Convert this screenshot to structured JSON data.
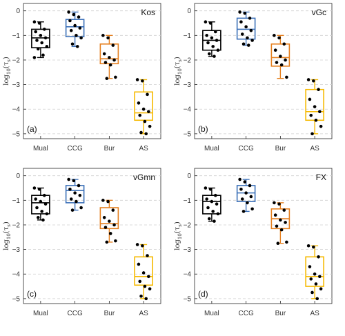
{
  "figure": {
    "y_axis_label_base": "log",
    "y_axis_label_sub": "10",
    "y_axis_label_arg": "(τ",
    "y_axis_label_argsub": "s",
    "y_axis_label_close": ")"
  },
  "chart_data": [
    {
      "type": "box",
      "title": "Kos",
      "panel_label": "(a)",
      "categories": [
        "Mual",
        "CCG",
        "Bur",
        "AS"
      ],
      "ylim": [
        -5.2,
        0.3
      ],
      "yticks": [
        0,
        -1,
        -2,
        -3,
        -4,
        -5
      ],
      "grid": "horizontal-dashed",
      "series": [
        {
          "category": "Mual",
          "color": "#000000",
          "min": -1.9,
          "q1": -1.5,
          "median": -1.1,
          "q3": -0.75,
          "max": -0.45,
          "points": [
            -0.45,
            -0.5,
            -0.75,
            -0.85,
            -1.0,
            -1.1,
            -1.2,
            -1.3,
            -1.45,
            -1.55,
            -1.8,
            -1.9
          ]
        },
        {
          "category": "CCG",
          "color": "#3a6fb8",
          "min": -1.45,
          "q1": -1.05,
          "median": -0.65,
          "q3": -0.35,
          "max": -0.05,
          "points": [
            -0.05,
            -0.15,
            -0.25,
            -0.4,
            -0.6,
            -0.7,
            -0.8,
            -1.0,
            -1.1,
            -1.35,
            -1.45
          ]
        },
        {
          "category": "Bur",
          "color": "#e57f1e",
          "min": -2.75,
          "q1": -2.15,
          "median": -1.95,
          "q3": -1.35,
          "max": -1.0,
          "points": [
            -1.0,
            -1.1,
            -1.4,
            -1.75,
            -1.9,
            -2.0,
            -2.1,
            -2.2,
            -2.7,
            -2.75
          ]
        },
        {
          "category": "AS",
          "color": "#f6b900",
          "min": -5.0,
          "q1": -4.45,
          "median": -4.15,
          "q3": -3.3,
          "max": -2.8,
          "points": [
            -2.8,
            -2.85,
            -3.4,
            -3.75,
            -4.0,
            -4.1,
            -4.25,
            -4.5,
            -4.7,
            -4.95,
            -5.0
          ]
        }
      ]
    },
    {
      "type": "box",
      "title": "vGc",
      "panel_label": "(b)",
      "categories": [
        "Mual",
        "CCG",
        "Bur",
        "AS"
      ],
      "ylim": [
        -5.2,
        0.3
      ],
      "yticks": [
        0,
        -1,
        -2,
        -3,
        -4,
        -5
      ],
      "grid": "horizontal-dashed",
      "series": [
        {
          "category": "Mual",
          "color": "#000000",
          "min": -1.85,
          "q1": -1.6,
          "median": -1.2,
          "q3": -0.8,
          "max": -0.45,
          "points": [
            -0.45,
            -0.5,
            -0.85,
            -1.0,
            -1.1,
            -1.2,
            -1.3,
            -1.45,
            -1.6,
            -1.75,
            -1.85
          ]
        },
        {
          "category": "CCG",
          "color": "#3a6fb8",
          "min": -1.4,
          "q1": -1.15,
          "median": -0.75,
          "q3": -0.3,
          "max": -0.05,
          "points": [
            -0.05,
            -0.1,
            -0.3,
            -0.45,
            -0.65,
            -0.8,
            -0.95,
            -1.1,
            -1.2,
            -1.35,
            -1.4
          ]
        },
        {
          "category": "Bur",
          "color": "#e57f1e",
          "min": -2.75,
          "q1": -2.25,
          "median": -1.9,
          "q3": -1.35,
          "max": -1.0,
          "points": [
            -1.0,
            -1.1,
            -1.35,
            -1.6,
            -1.85,
            -2.0,
            -2.1,
            -2.2,
            -2.7
          ]
        },
        {
          "category": "AS",
          "color": "#f6b900",
          "min": -5.0,
          "q1": -4.45,
          "median": -4.1,
          "q3": -3.2,
          "max": -2.8,
          "points": [
            -2.8,
            -2.85,
            -3.2,
            -3.6,
            -3.9,
            -4.1,
            -4.25,
            -4.45,
            -4.7,
            -5.0
          ]
        }
      ]
    },
    {
      "type": "box",
      "title": "vGmn",
      "panel_label": "(c)",
      "categories": [
        "Mual",
        "CCG",
        "Bur",
        "AS"
      ],
      "ylim": [
        -5.2,
        0.3
      ],
      "yticks": [
        0,
        -1,
        -2,
        -3,
        -4,
        -5
      ],
      "grid": "horizontal-dashed",
      "series": [
        {
          "category": "Mual",
          "color": "#000000",
          "min": -1.8,
          "q1": -1.55,
          "median": -1.1,
          "q3": -0.8,
          "max": -0.5,
          "points": [
            -0.5,
            -0.55,
            -0.8,
            -0.95,
            -1.05,
            -1.15,
            -1.3,
            -1.45,
            -1.55,
            -1.7,
            -1.8
          ]
        },
        {
          "category": "CCG",
          "color": "#3a6fb8",
          "min": -1.4,
          "q1": -1.1,
          "median": -0.6,
          "q3": -0.4,
          "max": -0.15,
          "points": [
            -0.15,
            -0.2,
            -0.4,
            -0.55,
            -0.7,
            -0.8,
            -0.95,
            -1.05,
            -1.3,
            -1.4
          ]
        },
        {
          "category": "Bur",
          "color": "#e57f1e",
          "min": -2.7,
          "q1": -2.15,
          "median": -1.95,
          "q3": -1.3,
          "max": -1.0,
          "points": [
            -1.0,
            -1.05,
            -1.4,
            -1.7,
            -1.85,
            -2.0,
            -2.1,
            -2.35,
            -2.65,
            -2.7
          ]
        },
        {
          "category": "AS",
          "color": "#f6b900",
          "min": -5.0,
          "q1": -4.45,
          "median": -4.1,
          "q3": -3.3,
          "max": -2.8,
          "points": [
            -2.8,
            -2.85,
            -3.25,
            -3.6,
            -3.95,
            -4.1,
            -4.3,
            -4.5,
            -4.6,
            -4.9,
            -5.0
          ]
        }
      ]
    },
    {
      "type": "box",
      "title": "FX",
      "panel_label": "(d)",
      "categories": [
        "Mual",
        "CCG",
        "Bur",
        "AS"
      ],
      "ylim": [
        -5.2,
        0.3
      ],
      "yticks": [
        0,
        -1,
        -2,
        -3,
        -4,
        -5
      ],
      "grid": "horizontal-dashed",
      "series": [
        {
          "category": "Mual",
          "color": "#000000",
          "min": -1.85,
          "q1": -1.55,
          "median": -1.05,
          "q3": -0.8,
          "max": -0.5,
          "points": [
            -0.5,
            -0.55,
            -0.8,
            -0.95,
            -1.05,
            -1.15,
            -1.3,
            -1.45,
            -1.55,
            -1.75,
            -1.85
          ]
        },
        {
          "category": "CCG",
          "color": "#3a6fb8",
          "min": -1.45,
          "q1": -1.05,
          "median": -0.7,
          "q3": -0.4,
          "max": -0.15,
          "points": [
            -0.15,
            -0.25,
            -0.4,
            -0.55,
            -0.7,
            -0.85,
            -0.95,
            -1.1,
            -1.35,
            -1.45
          ]
        },
        {
          "category": "Bur",
          "color": "#e57f1e",
          "min": -2.75,
          "q1": -2.15,
          "median": -1.75,
          "q3": -1.35,
          "max": -1.1,
          "points": [
            -1.1,
            -1.15,
            -1.4,
            -1.6,
            -1.8,
            -1.9,
            -2.05,
            -2.2,
            -2.7,
            -2.75
          ]
        },
        {
          "category": "AS",
          "color": "#f6b900",
          "min": -5.0,
          "q1": -4.5,
          "median": -4.1,
          "q3": -3.3,
          "max": -2.85,
          "points": [
            -2.85,
            -2.9,
            -3.3,
            -3.7,
            -4.0,
            -4.1,
            -4.2,
            -4.4,
            -4.6,
            -4.75,
            -5.0
          ]
        }
      ]
    }
  ]
}
